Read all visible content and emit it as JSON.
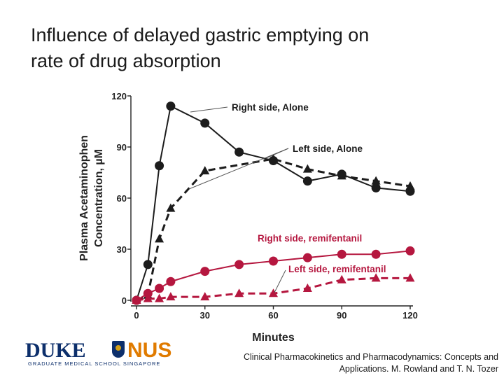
{
  "slide": {
    "title_lines": [
      "Influence of delayed gastric emptying on",
      "rate of drug absorption"
    ],
    "citation_lines": [
      "Clinical Pharmacokinetics and Pharmacodynamics: Concepts and",
      "Applications. M. Rowland and T. N. Tozer"
    ],
    "logo": {
      "left": "DUKE",
      "right": "NUS",
      "tagline": "GRADUATE MEDICAL SCHOOL SINGAPORE"
    }
  },
  "colors": {
    "black_series": "#1c1c1c",
    "red_series": "#b5173f",
    "arrow": "#555555"
  },
  "chart_data": {
    "type": "line",
    "xlabel": "Minutes",
    "ylabel_lines": [
      "Plasma Acetaminophen",
      "Concentration, µM"
    ],
    "xlim": [
      0,
      120
    ],
    "ylim": [
      0,
      120
    ],
    "x_ticks": [
      0,
      30,
      60,
      90,
      120
    ],
    "y_ticks": [
      0,
      30,
      60,
      90,
      120
    ],
    "series": [
      {
        "name": "Right side, Alone",
        "color": "black",
        "line": "solid",
        "marker": "circle",
        "points": [
          [
            0,
            0
          ],
          [
            5,
            21
          ],
          [
            10,
            79
          ],
          [
            15,
            114
          ],
          [
            30,
            104
          ],
          [
            45,
            87
          ],
          [
            60,
            82
          ],
          [
            75,
            70
          ],
          [
            90,
            74
          ],
          [
            105,
            66
          ],
          [
            120,
            64
          ]
        ]
      },
      {
        "name": "Left side, Alone",
        "color": "black",
        "line": "dashed",
        "marker": "triangle",
        "points": [
          [
            0,
            0
          ],
          [
            5,
            3
          ],
          [
            10,
            36
          ],
          [
            15,
            54
          ],
          [
            30,
            76
          ],
          [
            60,
            83
          ],
          [
            75,
            77
          ],
          [
            90,
            73
          ],
          [
            105,
            70
          ],
          [
            120,
            67
          ]
        ]
      },
      {
        "name": "Right side, remifentanil",
        "color": "red",
        "line": "solid",
        "marker": "circle",
        "points": [
          [
            0,
            0
          ],
          [
            5,
            4
          ],
          [
            10,
            7
          ],
          [
            15,
            11
          ],
          [
            30,
            17
          ],
          [
            45,
            21
          ],
          [
            60,
            23
          ],
          [
            75,
            25
          ],
          [
            90,
            27
          ],
          [
            105,
            27
          ],
          [
            120,
            29
          ]
        ]
      },
      {
        "name": "Left side, remifentanil",
        "color": "red",
        "line": "dashed",
        "marker": "triangle",
        "points": [
          [
            0,
            0
          ],
          [
            5,
            1
          ],
          [
            10,
            1
          ],
          [
            15,
            2
          ],
          [
            30,
            2
          ],
          [
            45,
            4
          ],
          [
            60,
            4
          ],
          [
            75,
            7
          ],
          [
            90,
            12
          ],
          [
            105,
            13
          ],
          [
            120,
            13
          ]
        ]
      }
    ]
  }
}
